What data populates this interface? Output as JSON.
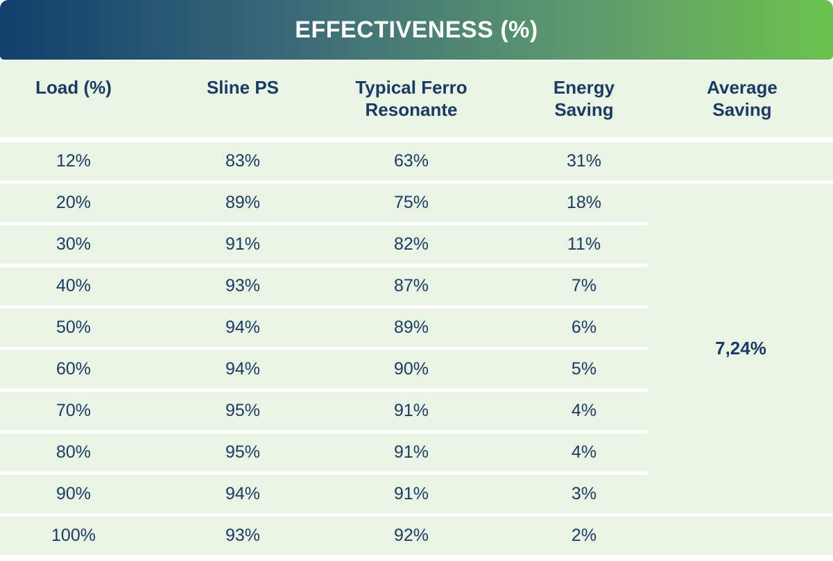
{
  "title": "EFFECTIVENESS (%)",
  "table": {
    "header": [
      "Load (%)",
      "Sline PS",
      "Typical Ferro Resonante",
      "Energy Saving",
      "Average Saving"
    ],
    "rows": [
      [
        "12%",
        "83%",
        "63%",
        "31%"
      ],
      [
        "20%",
        "89%",
        "75%",
        "18%"
      ],
      [
        "30%",
        "91%",
        "82%",
        "11%"
      ],
      [
        "40%",
        "93%",
        "87%",
        "7%"
      ],
      [
        "50%",
        "94%",
        "89%",
        "6%"
      ],
      [
        "60%",
        "94%",
        "90%",
        "5%"
      ],
      [
        "70%",
        "95%",
        "91%",
        "4%"
      ],
      [
        "80%",
        "95%",
        "91%",
        "4%"
      ],
      [
        "90%",
        "94%",
        "91%",
        "3%"
      ],
      [
        "100%",
        "93%",
        "92%",
        "2%"
      ]
    ],
    "average_saving": "7,24%"
  }
}
